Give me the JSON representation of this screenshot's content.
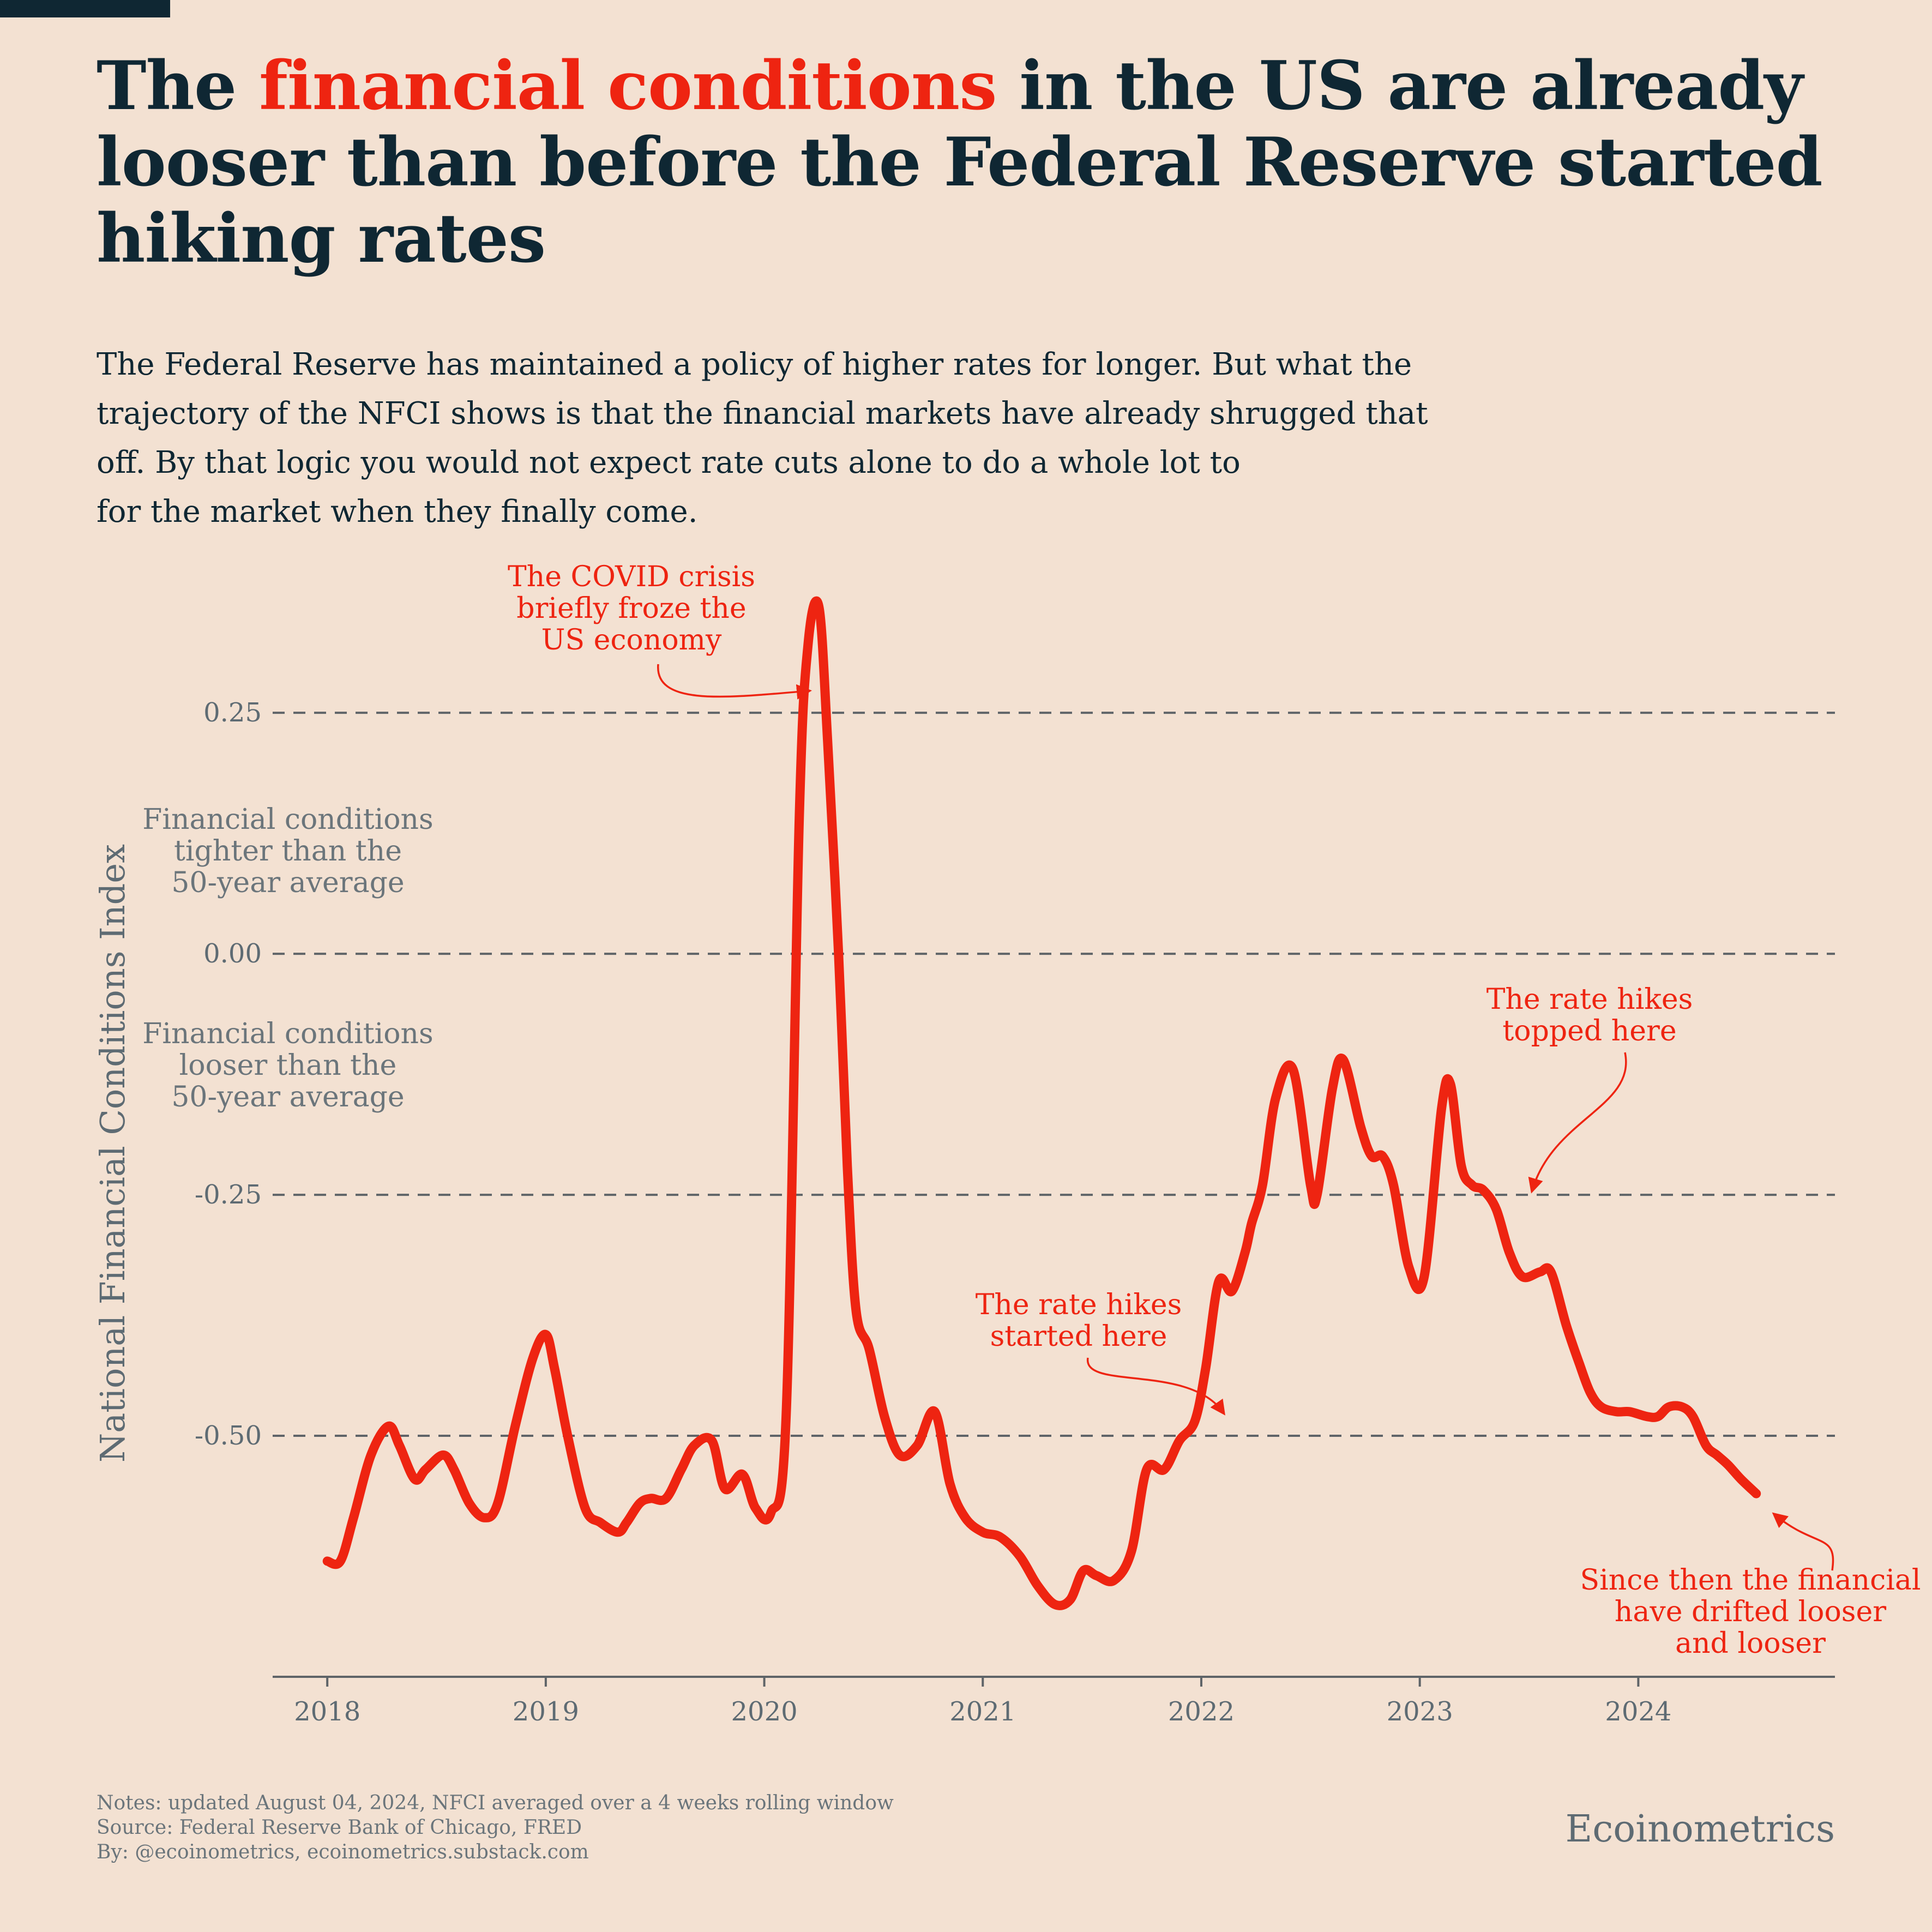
{
  "headline": {
    "part1": "The ",
    "highlight": "financial conditions",
    "part2": " in the US are already looser than before the Federal Reserve started hiking rates"
  },
  "subtitle_lines": [
    "The Federal Reserve has maintained a policy of higher rates for longer. But what the",
    "trajectory of the NFCI shows is that the financial markets have already shrugged that",
    "off. By that logic you would not expect rate cuts alone to do a whole lot to",
    "for the market when they finally come."
  ],
  "zone_labels": {
    "tighter": [
      "Financial conditions",
      "tighter than the",
      "50-year average"
    ],
    "looser": [
      "Financial conditions",
      "looser than the",
      "50-year average"
    ]
  },
  "annotations": {
    "covid": [
      "The COVID crisis",
      "briefly froze the",
      "US economy"
    ],
    "hikes_start": [
      "The rate hikes",
      "started here"
    ],
    "hikes_top": [
      "The rate hikes",
      "topped here"
    ],
    "since": [
      "Since then the financial",
      "have drifted looser",
      "and looser"
    ]
  },
  "footnotes": [
    "Notes: updated August 04, 2024, NFCI averaged over a 4 weeks rolling window",
    "Source: Federal Reserve Bank of Chicago, FRED",
    "By: @ecoinometrics, ecoinometrics.substack.com"
  ],
  "brand": "Ecoinometrics",
  "colors": {
    "line": "#ee2411",
    "text": "#0f2733",
    "muted": "#5e6b73",
    "background": "#f3e1d2"
  },
  "chart_data": {
    "type": "line",
    "title": "",
    "xlabel": "",
    "ylabel": "National Financial Conditions Index",
    "x_ticks": [
      "2018",
      "2019",
      "2020",
      "2021",
      "2022",
      "2023",
      "2024"
    ],
    "y_ticks": [
      "0.25",
      "0.00",
      "-0.25",
      "-0.50"
    ],
    "y_tick_values": [
      0.25,
      0.0,
      -0.25,
      -0.5
    ],
    "xlim": [
      2017.75,
      2024.9
    ],
    "ylim": [
      -0.75,
      0.37
    ],
    "grid": "horizontal dashed",
    "series": [
      {
        "x": [
          2018.0,
          2018.06,
          2018.12,
          2018.2,
          2018.28,
          2018.33,
          2018.4,
          2018.45,
          2018.53,
          2018.58,
          2018.65,
          2018.72,
          2018.78,
          2018.86,
          2018.94,
          2019.0,
          2019.04,
          2019.1,
          2019.18,
          2019.25,
          2019.33,
          2019.37,
          2019.43,
          2019.48,
          2019.55,
          2019.62,
          2019.68,
          2019.76,
          2019.82,
          2019.9,
          2019.96,
          2020.03,
          2020.1,
          2020.16,
          2020.2,
          2020.25,
          2020.29,
          2020.34,
          2020.38,
          2020.42,
          2020.48,
          2020.55,
          2020.62,
          2020.7,
          2020.78,
          2020.85,
          2020.92,
          2021.0,
          2021.08,
          2021.17,
          2021.25,
          2021.33,
          2021.4,
          2021.46,
          2021.52,
          2021.6,
          2021.68,
          2021.75,
          2021.83,
          2021.9,
          2021.97,
          2022.02,
          2022.08,
          2022.14,
          2022.2,
          2022.23,
          2022.28,
          2022.34,
          2022.42,
          2022.5,
          2022.53,
          2022.6,
          2022.65,
          2022.73,
          2022.78,
          2022.83,
          2022.88,
          2022.95,
          2023.02,
          2023.1,
          2023.14,
          2023.19,
          2023.24,
          2023.29,
          2023.35,
          2023.41,
          2023.47,
          2023.55,
          2023.6,
          2023.67,
          2023.73,
          2023.78,
          2023.83,
          2023.9,
          2023.96,
          2024.04,
          2024.09,
          2024.14,
          2024.2,
          2024.25,
          2024.31,
          2024.36,
          2024.41,
          2024.47,
          2024.54
        ],
        "y": [
          -0.63,
          -0.63,
          -0.585,
          -0.52,
          -0.49,
          -0.51,
          -0.545,
          -0.535,
          -0.52,
          -0.535,
          -0.57,
          -0.585,
          -0.57,
          -0.49,
          -0.42,
          -0.395,
          -0.43,
          -0.5,
          -0.575,
          -0.59,
          -0.6,
          -0.59,
          -0.57,
          -0.565,
          -0.565,
          -0.535,
          -0.51,
          -0.505,
          -0.555,
          -0.54,
          -0.575,
          -0.58,
          -0.48,
          0.14,
          0.32,
          0.36,
          0.22,
          0.0,
          -0.22,
          -0.37,
          -0.41,
          -0.48,
          -0.52,
          -0.51,
          -0.475,
          -0.55,
          -0.585,
          -0.6,
          -0.605,
          -0.625,
          -0.655,
          -0.675,
          -0.67,
          -0.64,
          -0.645,
          -0.65,
          -0.62,
          -0.535,
          -0.535,
          -0.505,
          -0.485,
          -0.43,
          -0.34,
          -0.35,
          -0.31,
          -0.28,
          -0.24,
          -0.15,
          -0.12,
          -0.24,
          -0.25,
          -0.14,
          -0.11,
          -0.18,
          -0.21,
          -0.21,
          -0.24,
          -0.325,
          -0.335,
          -0.16,
          -0.135,
          -0.22,
          -0.24,
          -0.245,
          -0.265,
          -0.31,
          -0.335,
          -0.33,
          -0.33,
          -0.385,
          -0.425,
          -0.455,
          -0.47,
          -0.475,
          -0.475,
          -0.48,
          -0.48,
          -0.47,
          -0.47,
          -0.48,
          -0.51,
          -0.52,
          -0.53,
          -0.545,
          -0.56
        ]
      }
    ]
  }
}
